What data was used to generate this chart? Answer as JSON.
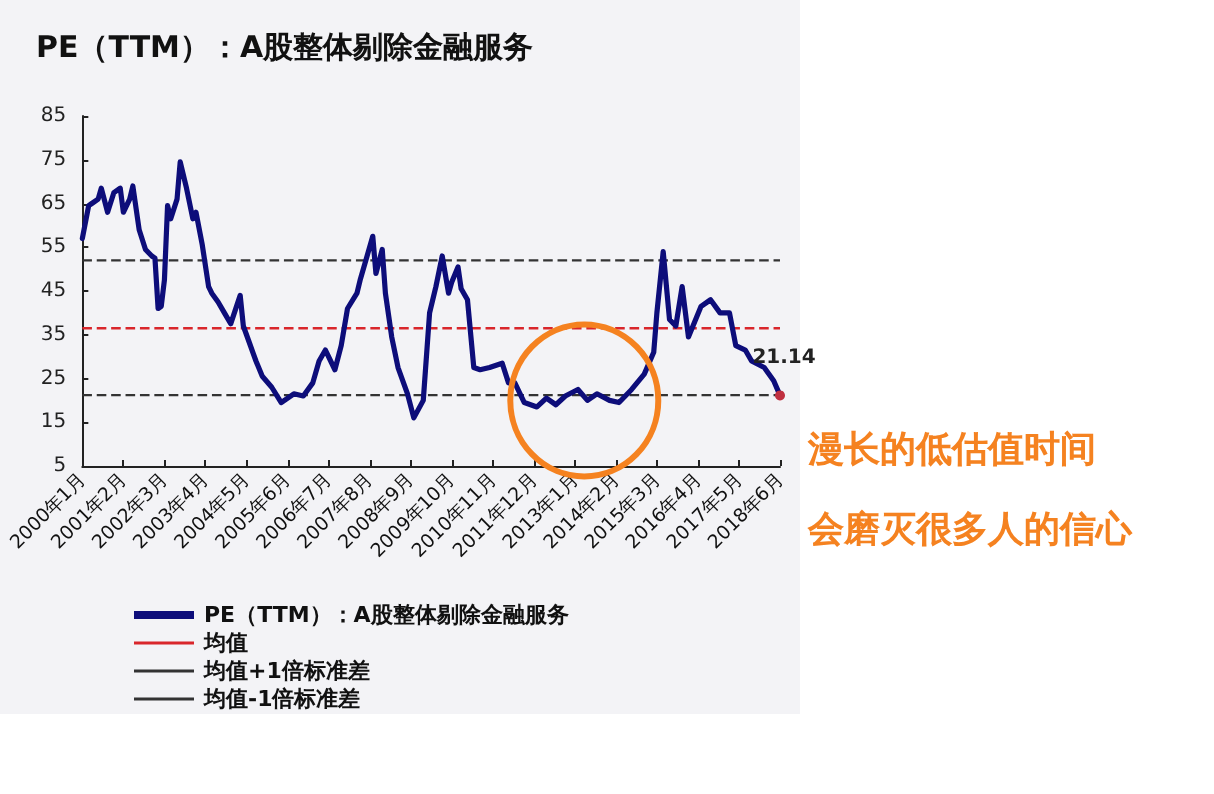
{
  "chart_data": {
    "type": "line",
    "title": "PE（TTM）：A股整体剔除金融服务",
    "series": [
      {
        "name": "PE（TTM）：A股整体剔除金融服务",
        "color": "#0d0d7a",
        "x": [
          "2000-01",
          "2000-03",
          "2000-04",
          "2000-06",
          "2000-07",
          "2000-09",
          "2000-11",
          "2001-01",
          "2001-02",
          "2001-04",
          "2001-05",
          "2001-07",
          "2001-09",
          "2001-11",
          "2001-12",
          "2002-01",
          "2002-02",
          "2002-03",
          "2002-04",
          "2002-05",
          "2002-07",
          "2002-08",
          "2002-10",
          "2002-12",
          "2003-01",
          "2003-03",
          "2003-05",
          "2003-06",
          "2003-08",
          "2003-10",
          "2003-12",
          "2004-03",
          "2004-04",
          "2004-06",
          "2004-08",
          "2004-10",
          "2005-01",
          "2005-04",
          "2005-08",
          "2005-11",
          "2006-02",
          "2006-04",
          "2006-06",
          "2006-09",
          "2006-11",
          "2007-01",
          "2007-04",
          "2007-05",
          "2007-07",
          "2007-09",
          "2007-10",
          "2007-12",
          "2008-01",
          "2008-03",
          "2008-05",
          "2008-08",
          "2008-10",
          "2009-01",
          "2009-03",
          "2009-05",
          "2009-07",
          "2009-09",
          "2009-10",
          "2009-12",
          "2010-01",
          "2010-03",
          "2010-05",
          "2010-07",
          "2010-10",
          "2011-02",
          "2011-04",
          "2011-06",
          "2011-09",
          "2012-01",
          "2012-04",
          "2012-07",
          "2012-10",
          "2013-02",
          "2013-05",
          "2013-08",
          "2013-12",
          "2014-03",
          "2014-07",
          "2014-11",
          "2015-02",
          "2015-03",
          "2015-05",
          "2015-07",
          "2015-09",
          "2015-11",
          "2016-01",
          "2016-05",
          "2016-08",
          "2016-11",
          "2017-02",
          "2017-04",
          "2017-07",
          "2017-09",
          "2018-01",
          "2018-04",
          "2018-06"
        ],
        "values": [
          57,
          64.5,
          65,
          66,
          68.5,
          63,
          67.5,
          68.5,
          63,
          66,
          69,
          59,
          54.5,
          53,
          52.5,
          41,
          41.5,
          47.5,
          64.5,
          61.5,
          66,
          74.5,
          68.5,
          61.5,
          63,
          55.5,
          46,
          44.5,
          42.5,
          40,
          37.5,
          44,
          37,
          33,
          29,
          25.5,
          23,
          19.5,
          21.5,
          21,
          24,
          29,
          31.5,
          27,
          32.5,
          41,
          44.5,
          47.5,
          52.5,
          57.5,
          49,
          54.5,
          44.5,
          34.5,
          27.5,
          21.5,
          16,
          20,
          40,
          46,
          53,
          44.5,
          47,
          50.5,
          45.5,
          43,
          27.5,
          27,
          27.5,
          28.5,
          24,
          24,
          19.5,
          18.5,
          20.5,
          19,
          21,
          22.5,
          20,
          21.5,
          20,
          19.5,
          22.5,
          26,
          31,
          40,
          54,
          38.5,
          37,
          46,
          34.5,
          41.5,
          43,
          40,
          40,
          32.5,
          31.5,
          29,
          27.5,
          24.5,
          21.14
        ]
      }
    ],
    "xlim": [
      "2000-01",
      "2018-06"
    ],
    "xticks": [
      {
        "value": "2000-01",
        "label": "2000年1月"
      },
      {
        "value": "2001-02",
        "label": "2001年2月"
      },
      {
        "value": "2002-03",
        "label": "2002年3月"
      },
      {
        "value": "2003-04",
        "label": "2003年4月"
      },
      {
        "value": "2004-05",
        "label": "2004年5月"
      },
      {
        "value": "2005-06",
        "label": "2005年6月"
      },
      {
        "value": "2006-07",
        "label": "2006年7月"
      },
      {
        "value": "2007-08",
        "label": "2007年8月"
      },
      {
        "value": "2008-09",
        "label": "2008年9月"
      },
      {
        "value": "2009-10",
        "label": "2009年10月"
      },
      {
        "value": "2010-11",
        "label": "2010年11月"
      },
      {
        "value": "2011-12",
        "label": "2011年12月"
      },
      {
        "value": "2013-01",
        "label": "2013年1月"
      },
      {
        "value": "2014-02",
        "label": "2014年2月"
      },
      {
        "value": "2015-03",
        "label": "2015年3月"
      },
      {
        "value": "2016-04",
        "label": "2016年4月"
      },
      {
        "value": "2017-05",
        "label": "2017年5月"
      },
      {
        "value": "2018-06",
        "label": "2018年6月"
      }
    ],
    "ylim": [
      5,
      85
    ],
    "yticks": [
      5,
      15,
      25,
      35,
      45,
      55,
      65,
      75,
      85
    ],
    "ref_lines": [
      {
        "axis": "y",
        "value": 36.5,
        "label": "均值",
        "color": "#d9262b",
        "line_style": "dashed"
      },
      {
        "axis": "y",
        "value": 52,
        "label": "均值+1倍标准差",
        "color": "#333333",
        "line_style": "dashed"
      },
      {
        "axis": "y",
        "value": 21.2,
        "label": "均值-1倍标准差",
        "color": "#333333",
        "line_style": "dashed"
      }
    ],
    "annotations": [
      {
        "text": "21.14",
        "x": "2018-06",
        "y": 21.14
      },
      "漫长的低估值时间",
      "会磨灭很多人的信心"
    ],
    "legend": "bottom left",
    "grid": false,
    "marker": "none",
    "line_style": "solid"
  }
}
